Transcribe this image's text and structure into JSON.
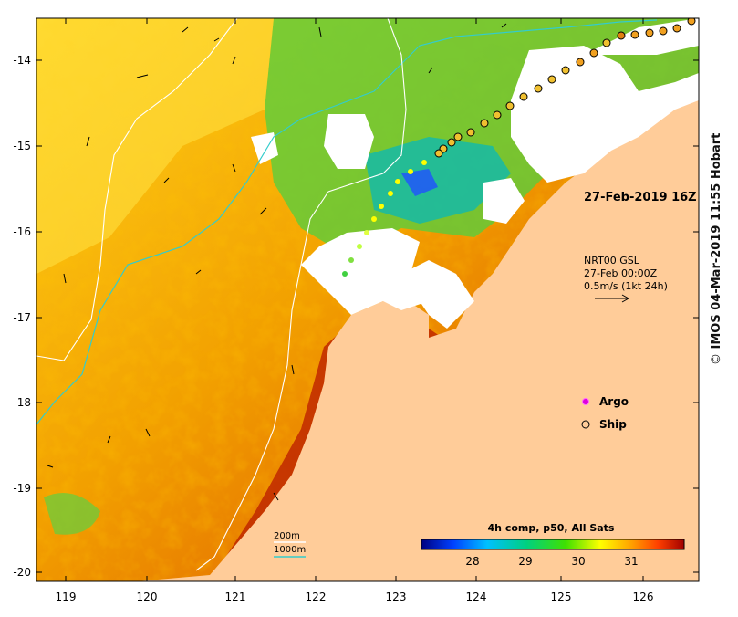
{
  "map": {
    "lat_ticks": [
      "-14",
      "-15",
      "-16",
      "-17",
      "-18",
      "-19",
      "-20"
    ],
    "lon_ticks": [
      "119",
      "120",
      "121",
      "122",
      "123",
      "124",
      "125",
      "126"
    ],
    "lon_range": [
      118.65,
      126.7
    ],
    "lat_range": [
      -20.15,
      -13.5
    ]
  },
  "annotations": {
    "date_label": "27-Feb-2019 16Z",
    "current_source": "NRT00 GSL",
    "current_date": "27-Feb 00:00Z",
    "current_scale": "0.5m/s (1kt 24h)"
  },
  "legend": {
    "argo_label": "Argo",
    "ship_label": "Ship",
    "contour_200m": "200m",
    "contour_1000m": "1000m",
    "colour_200m": "#ffffff",
    "colour_1000m": "#33cccc"
  },
  "colorbar": {
    "title": "4h comp, p50, All Sats",
    "ticks": [
      "28",
      "29",
      "30",
      "31"
    ],
    "tick_values": [
      28,
      29,
      30,
      31
    ],
    "range": [
      27.1,
      31.9
    ],
    "colors": [
      "#000080",
      "#0040ff",
      "#00c0ff",
      "#00d080",
      "#40e000",
      "#ffff00",
      "#ffa000",
      "#ff4000",
      "#a00000"
    ]
  },
  "credit": {
    "symbol": "©",
    "text": "IMOS 04-Mar-2019 11:55 Hobart"
  },
  "colors": {
    "land": "#ffcc99",
    "no_data": "#ffffff",
    "ship_marker": "#f0a020",
    "argo_marker": "#dd00dd"
  }
}
